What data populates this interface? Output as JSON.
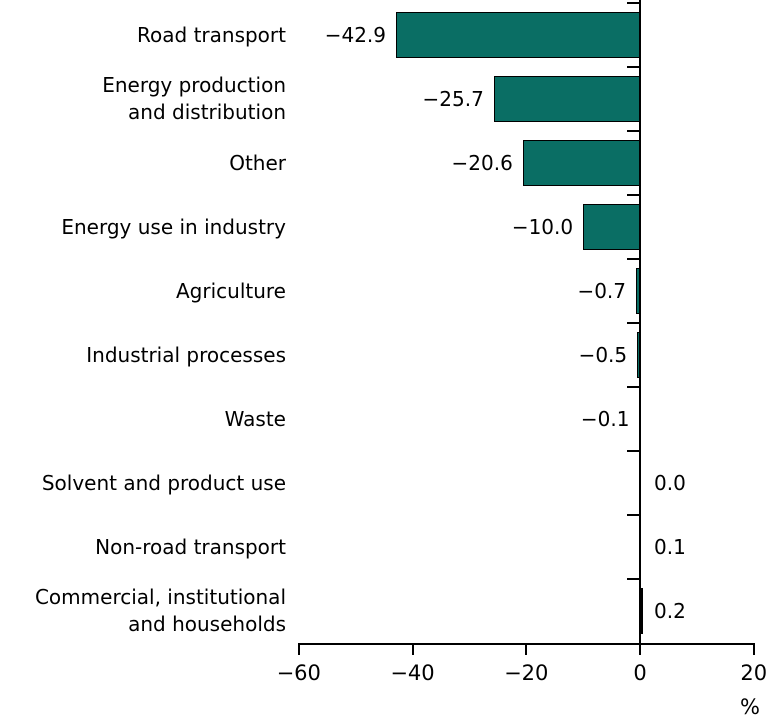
{
  "chart_data": {
    "type": "bar",
    "orientation": "horizontal",
    "title": "",
    "xlabel": "%",
    "xlim": [
      -60,
      20
    ],
    "xticks": [
      -60,
      -40,
      -20,
      0,
      20
    ],
    "xtick_labels": [
      "−60",
      "−40",
      "−20",
      "0",
      "20"
    ],
    "categories": [
      "Road transport",
      "Energy production\nand distribution",
      "Other",
      "Energy use in industry",
      "Agriculture",
      "Industrial processes",
      "Waste",
      "Solvent and product use",
      "Non-road transport",
      "Commercial, institutional\nand households"
    ],
    "values": [
      -42.9,
      -25.7,
      -20.6,
      -10.0,
      -0.7,
      -0.5,
      -0.1,
      0.0,
      0.1,
      0.2
    ],
    "value_labels": [
      "−42.9",
      "−25.7",
      "−20.6",
      "−10.0",
      "−0.7",
      "−0.5",
      "−0.1",
      "0.0",
      "0.1",
      "0.2"
    ],
    "grid": false,
    "legend": false,
    "colors": {
      "bar_fill": "#0A6E64",
      "bar_border": "#000000",
      "axis": "#000000",
      "text": "#000000"
    }
  }
}
